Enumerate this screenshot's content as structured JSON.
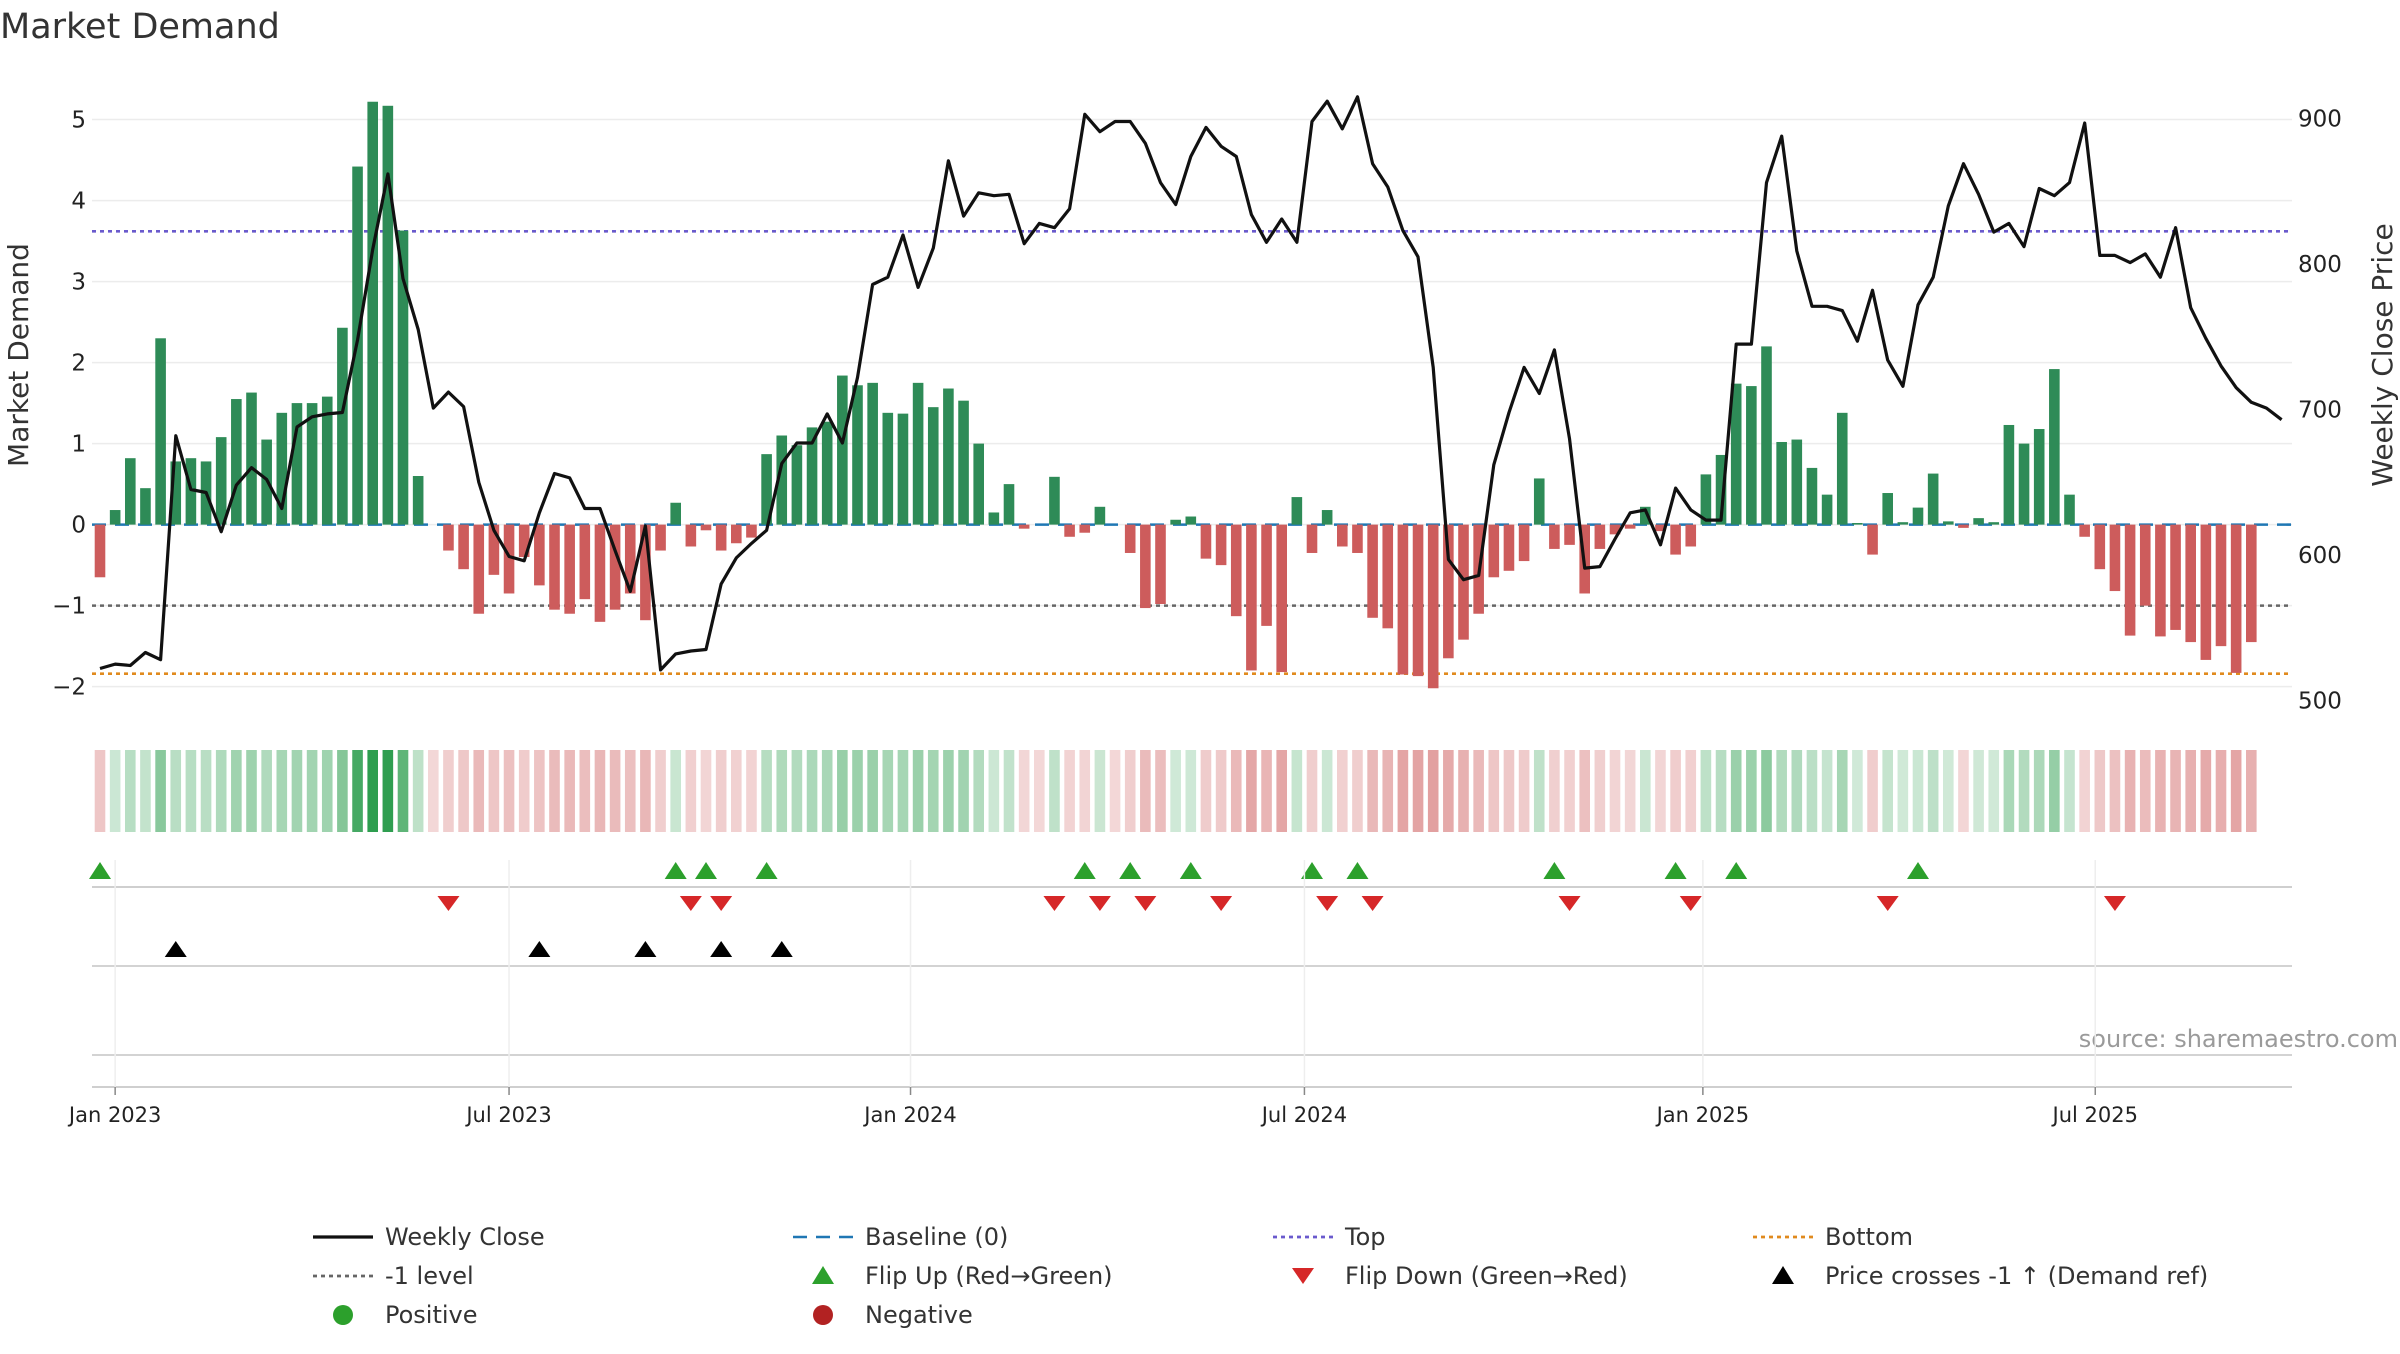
{
  "chart_data": {
    "type": "bar",
    "title": "Market Demand",
    "ylabel_left": "Market Demand",
    "ylabel_right": "Weekly Close Price",
    "ylim_left": [
      -2.35,
      5.55
    ],
    "ylim_right": [
      490,
      930
    ],
    "yticks_left": [
      5,
      4,
      3,
      2,
      1,
      0,
      -1,
      -2
    ],
    "ytick_labels_left": [
      "5",
      "4",
      "3",
      "2",
      "1",
      "0",
      "−1",
      "−2"
    ],
    "yticks_right": [
      900,
      800,
      700,
      600,
      500
    ],
    "ytick_labels_right": [
      "900",
      "800",
      "700",
      "600",
      "500"
    ],
    "x_start": "2022-12-26",
    "weeks": 145,
    "x_ticks": [
      {
        "label": "Jan 2023",
        "week": 1.0
      },
      {
        "label": "Jul 2023",
        "week": 27.0
      },
      {
        "label": "Jan 2024",
        "week": 53.5
      },
      {
        "label": "Jul 2024",
        "week": 79.5
      },
      {
        "label": "Jan 2025",
        "week": 105.8
      },
      {
        "label": "Jul 2025",
        "week": 131.7
      }
    ],
    "reference_lines": {
      "top": 3.62,
      "bottom": -1.84,
      "minus_one": -1.0,
      "baseline": 0
    },
    "demand": [
      -0.65,
      0.18,
      0.82,
      0.45,
      2.3,
      0.78,
      0.82,
      0.78,
      1.08,
      1.55,
      1.63,
      1.05,
      1.38,
      1.5,
      1.5,
      1.58,
      2.43,
      4.42,
      5.22,
      5.17,
      3.63,
      0.6,
      0,
      -0.32,
      -0.55,
      -1.1,
      -0.62,
      -0.85,
      -0.4,
      -0.75,
      -1.05,
      -1.1,
      -0.92,
      -1.2,
      -1.05,
      -0.85,
      -1.18,
      -0.32,
      0.27,
      -0.27,
      -0.07,
      -0.32,
      -0.23,
      -0.16,
      0.87,
      1.1,
      0.98,
      1.2,
      1.27,
      1.84,
      1.72,
      1.75,
      1.38,
      1.37,
      1.75,
      1.45,
      1.68,
      1.53,
      1.0,
      0.15,
      0.5,
      -0.05,
      0,
      0.59,
      -0.15,
      -0.1,
      0.22,
      0,
      -0.35,
      -1.03,
      -0.98,
      0.06,
      0.1,
      -0.42,
      -0.5,
      -1.13,
      -1.8,
      -1.25,
      -1.82,
      0.34,
      -0.35,
      0.18,
      -0.27,
      -0.35,
      -1.15,
      -1.28,
      -1.85,
      -1.87,
      -2.02,
      -1.65,
      -1.42,
      -1.1,
      -0.65,
      -0.57,
      -0.45,
      0.57,
      -0.3,
      -0.25,
      -0.85,
      -0.3,
      -0.12,
      -0.05,
      0.22,
      -0.08,
      -0.37,
      -0.27,
      0.62,
      0.86,
      1.74,
      1.71,
      2.2,
      1.02,
      1.05,
      0.7,
      0.37,
      1.38,
      0.02,
      -0.37,
      0.39,
      0.03,
      0.21,
      0.63,
      0.04,
      -0.04,
      0.08,
      0.03,
      1.23,
      1.0,
      1.18,
      1.92,
      0.37,
      -0.15,
      -0.55,
      -0.82,
      -1.37,
      -1.0,
      -1.38,
      -1.3,
      -1.45,
      -1.67,
      -1.5,
      -1.83,
      -1.45
    ],
    "close": [
      522,
      525,
      524,
      533,
      528,
      682,
      645,
      643,
      616,
      648,
      660,
      652,
      632,
      688,
      695,
      697,
      698,
      748,
      810,
      862,
      790,
      755,
      701,
      712,
      702,
      650,
      617,
      599,
      596,
      629,
      656,
      653,
      632,
      632,
      603,
      575,
      620,
      521,
      532,
      534,
      535,
      580,
      598,
      608,
      617,
      663,
      677,
      677,
      697,
      677,
      722,
      786,
      791,
      820,
      784,
      811,
      871,
      833,
      849,
      847,
      848,
      814,
      828,
      825,
      838,
      903,
      891,
      898,
      898,
      883,
      856,
      841,
      874,
      894,
      881,
      874,
      834,
      815,
      831,
      815,
      898,
      912,
      893,
      915,
      869,
      853,
      823,
      805,
      729,
      597,
      583,
      586,
      662,
      698,
      729,
      711,
      741,
      680,
      591,
      592,
      611,
      629,
      631,
      607,
      646,
      631,
      624,
      624,
      745,
      745,
      856,
      888,
      809,
      771,
      771,
      768,
      747,
      782,
      734,
      716,
      772,
      791,
      840,
      869,
      848,
      822,
      828,
      812,
      852,
      847,
      856,
      897,
      806,
      806,
      801,
      807,
      791,
      825,
      770,
      749,
      730,
      715,
      705,
      701,
      693
    ],
    "flips": [
      {
        "week": 0,
        "dir": "up"
      },
      {
        "week": 23,
        "dir": "down"
      },
      {
        "week": 38,
        "dir": "up"
      },
      {
        "week": 39,
        "dir": "down"
      },
      {
        "week": 40,
        "dir": "up"
      },
      {
        "week": 41,
        "dir": "down"
      },
      {
        "week": 44,
        "dir": "up"
      },
      {
        "week": 63,
        "dir": "down"
      },
      {
        "week": 65,
        "dir": "up"
      },
      {
        "week": 66,
        "dir": "down"
      },
      {
        "week": 68,
        "dir": "up"
      },
      {
        "week": 69,
        "dir": "down"
      },
      {
        "week": 72,
        "dir": "up"
      },
      {
        "week": 74,
        "dir": "down"
      },
      {
        "week": 80,
        "dir": "up"
      },
      {
        "week": 81,
        "dir": "down"
      },
      {
        "week": 83,
        "dir": "up"
      },
      {
        "week": 84,
        "dir": "down"
      },
      {
        "week": 96,
        "dir": "up"
      },
      {
        "week": 97,
        "dir": "down"
      },
      {
        "week": 104,
        "dir": "up"
      },
      {
        "week": 105,
        "dir": "down"
      },
      {
        "week": 108,
        "dir": "up"
      },
      {
        "week": 118,
        "dir": "down"
      },
      {
        "week": 120,
        "dir": "up"
      },
      {
        "week": 133,
        "dir": "down"
      }
    ],
    "price_crosses": [
      5,
      29,
      36,
      41,
      45
    ],
    "legend": [
      {
        "label": "Weekly Close",
        "marker": "line",
        "color": "#111111"
      },
      {
        "label": "Baseline (0)",
        "marker": "dash",
        "color": "#1f77b4"
      },
      {
        "label": "Top",
        "marker": "dot",
        "color": "#6a5acd"
      },
      {
        "label": "Bottom",
        "marker": "dot",
        "color": "#e08a1e"
      },
      {
        "label": "-1 level",
        "marker": "dot",
        "color": "#666666"
      },
      {
        "label": "Flip Up (Red→Green)",
        "marker": "tri-up",
        "color": "#2ca02c"
      },
      {
        "label": "Flip Down (Green→Red)",
        "marker": "tri-down",
        "color": "#d62728"
      },
      {
        "label": "Price crosses -1 ↑ (Demand ref)",
        "marker": "tri-up",
        "color": "#000000"
      },
      {
        "label": "Positive",
        "marker": "circle",
        "color": "#2ca02c"
      },
      {
        "label": "Negative",
        "marker": "circle",
        "color": "#b22222"
      }
    ],
    "source": "source: sharemaestro.com"
  },
  "colors": {
    "positive": "#2e8b57",
    "negative": "#cd5c5c",
    "price": "#111111",
    "top": "#6a5acd",
    "bottom": "#e08a1e",
    "minus_one": "#666666",
    "baseline": "#1f77b4",
    "flip_up": "#2ca02c",
    "flip_down": "#d62728"
  }
}
